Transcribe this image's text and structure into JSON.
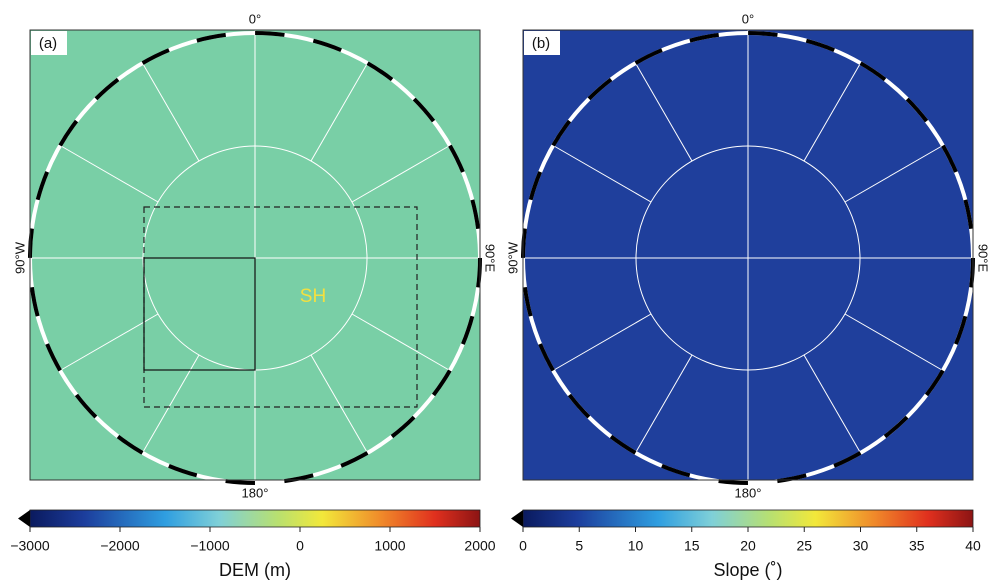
{
  "panels": [
    {
      "label": "(a)",
      "map_labels": {
        "top": "0°",
        "bottom": "180°",
        "left": "90°W",
        "right": "90°E"
      },
      "feature_label": "SH",
      "colorbar": {
        "title": "DEM (m)",
        "lim": [
          -3000,
          2000
        ],
        "ticks": [
          {
            "value": -3000,
            "label": "−3000"
          },
          {
            "value": -2000,
            "label": "−2000"
          },
          {
            "value": -1000,
            "label": "−1000"
          },
          0,
          1000,
          2000
        ]
      }
    },
    {
      "label": "(b)",
      "map_labels": {
        "top": "0°",
        "bottom": "180°",
        "left": "90°W",
        "right": "90°E"
      },
      "colorbar": {
        "title": "Slope (˚)",
        "lim": [
          0,
          40
        ],
        "ticks": [
          0,
          5,
          10,
          15,
          20,
          25,
          30,
          35,
          40
        ]
      }
    }
  ]
}
